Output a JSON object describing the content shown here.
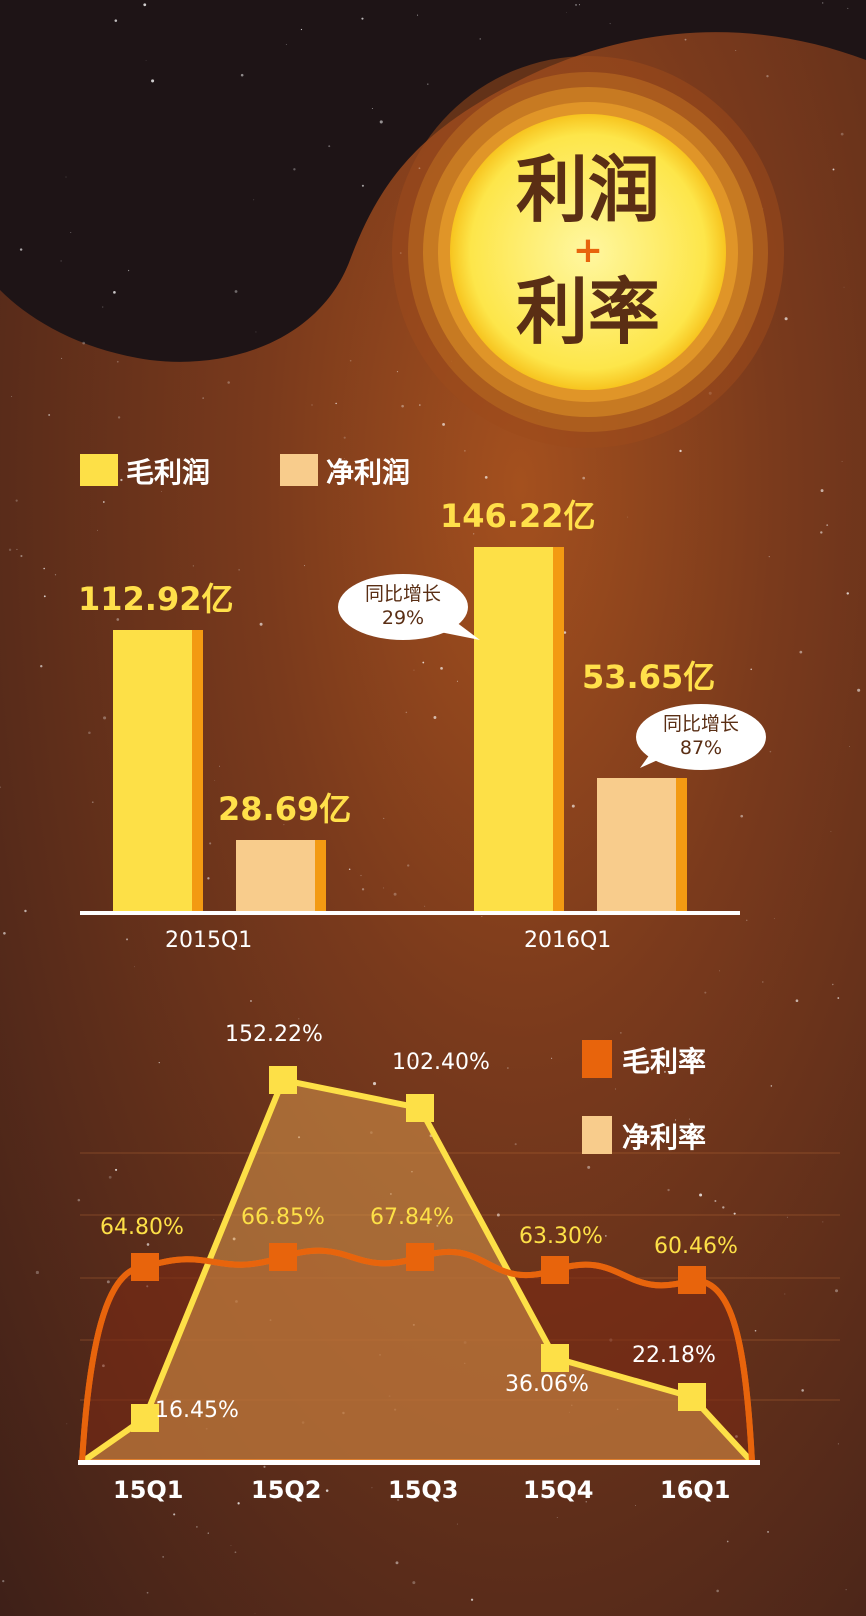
{
  "title": {
    "line1": "利润",
    "plus": "+",
    "line2": "利率"
  },
  "colors": {
    "gross": "#fde047",
    "net": "#f8cc8c",
    "gross_rate": "#e8640c",
    "net_rate": "#f8cc8c"
  },
  "chart_data": [
    {
      "type": "bar",
      "legend": [
        "毛利润",
        "净利润"
      ],
      "categories": [
        "2015Q1",
        "2016Q1"
      ],
      "series": [
        {
          "name": "毛利润",
          "values": [
            112.92,
            146.22
          ],
          "labels": [
            "112.92亿",
            "146.22亿"
          ]
        },
        {
          "name": "净利润",
          "values": [
            28.69,
            53.65
          ],
          "labels": [
            "28.69亿",
            "53.65亿"
          ]
        }
      ],
      "unit": "亿",
      "annotations": [
        {
          "series": "毛利润",
          "category": "2016Q1",
          "line1": "同比增长",
          "line2": "29%"
        },
        {
          "series": "净利润",
          "category": "2016Q1",
          "line1": "同比增长",
          "line2": "87%"
        }
      ]
    },
    {
      "type": "area",
      "legend": [
        "毛利率",
        "净利率"
      ],
      "categories": [
        "15Q1",
        "15Q2",
        "15Q3",
        "15Q4",
        "16Q1"
      ],
      "series": [
        {
          "name": "毛利率",
          "values": [
            64.8,
            66.85,
            67.84,
            63.3,
            60.46
          ],
          "labels": [
            "64.80%",
            "66.85%",
            "67.84%",
            "63.30%",
            "60.46%"
          ]
        },
        {
          "name": "净利率",
          "values": [
            16.45,
            152.22,
            102.4,
            36.06,
            22.18
          ],
          "labels": [
            "16.45%",
            "152.22%",
            "102.40%",
            "36.06%",
            "22.18%"
          ]
        }
      ]
    }
  ]
}
